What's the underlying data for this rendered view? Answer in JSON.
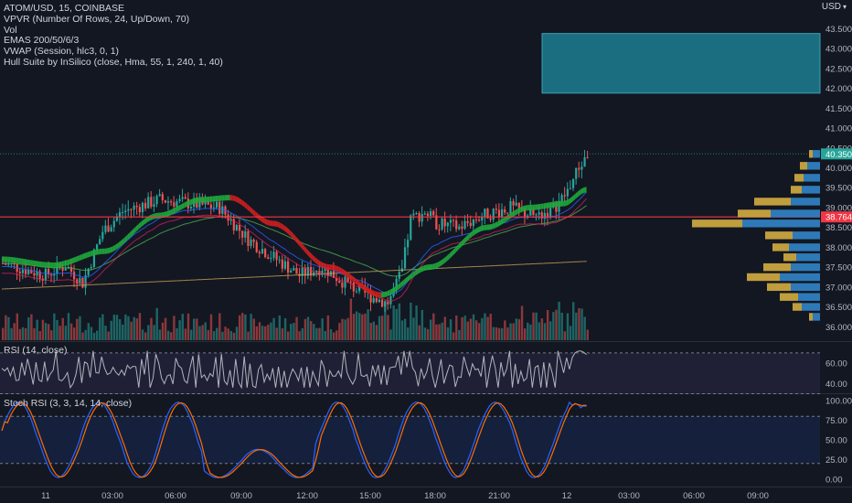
{
  "header": {
    "symbol_line": "ATOM/USD, 15, COINBASE",
    "indicators": [
      "VPVR (Number Of Rows, 24, Up/Down, 70)",
      "Vol",
      "EMAS 200/50/6/3",
      "VWAP (Session, hlc3, 0, 1)",
      "Hull Suite by InSilico (close, Hma, 55, 1, 240, 1, 40)"
    ],
    "currency": "USD",
    "currency_arrow": "▾"
  },
  "price_axis": {
    "ticks": [
      "43.500",
      "43.000",
      "42.500",
      "42.000",
      "41.500",
      "41.000",
      "40.500",
      "40.000",
      "39.500",
      "39.000",
      "38.500",
      "38.000",
      "37.500",
      "37.000",
      "36.500",
      "36.000"
    ],
    "current_price": "40.350",
    "hline_price": "38.764"
  },
  "rsi_pane": {
    "label": "RSI (14, close)",
    "ticks": [
      "60.00",
      "40.00"
    ]
  },
  "stoch_pane": {
    "label": "Stoch RSI (3, 3, 14, 14, close)",
    "ticks": [
      "100.00",
      "75.00",
      "50.00",
      "25.00",
      "0.00"
    ]
  },
  "time_axis": {
    "ticks": [
      "11",
      "03:00",
      "06:00",
      "09:00",
      "12:00",
      "15:00",
      "18:00",
      "21:00",
      "12",
      "03:00",
      "06:00",
      "09:00"
    ]
  },
  "colors": {
    "up": "#26a69a",
    "down": "#ef5350",
    "hline": "#f23645",
    "hull_up": "#1faa3c",
    "hull_down": "#d11f1f",
    "rsi_line": "#b2b5be",
    "stoch_k": "#2962ff",
    "stoch_d": "#ff6d00",
    "zone": "#1a6e80"
  }
}
